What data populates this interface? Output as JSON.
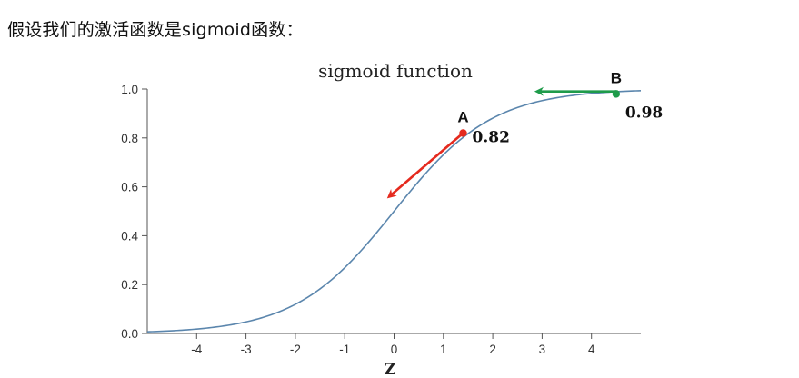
{
  "caption": "假设我们的激活函数是sigmoid函数：",
  "chart_data": {
    "type": "line",
    "title": "sigmoid function",
    "xlabel": "Z",
    "ylabel": "",
    "xlim": [
      -5,
      5
    ],
    "ylim": [
      0,
      1
    ],
    "x_ticks": [
      "-4",
      "-3",
      "-2",
      "-1",
      "0",
      "1",
      "2",
      "3",
      "4"
    ],
    "y_ticks": [
      "0.0",
      "0.2",
      "0.4",
      "0.6",
      "0.8",
      "1.0"
    ],
    "grid": false,
    "series": [
      {
        "function": "1/(1+exp(-z))",
        "x_range": [
          -5,
          5
        ],
        "color": "#5b86ad"
      }
    ],
    "points": [
      {
        "label": "A",
        "x": 1.4,
        "y": 0.82,
        "value_label": "0.82",
        "color": "#e52a1e"
      },
      {
        "label": "B",
        "x": 4.5,
        "y": 0.98,
        "value_label": "0.98",
        "color": "#1e9b4a"
      }
    ],
    "arrows": [
      {
        "name": "arrow-a",
        "from": [
          1.4,
          0.82
        ],
        "to": [
          -0.1,
          0.56
        ],
        "color": "#e52a1e"
      },
      {
        "name": "arrow-b",
        "from": [
          4.5,
          0.99
        ],
        "to": [
          2.9,
          0.99
        ],
        "color": "#1e9b4a"
      }
    ]
  }
}
